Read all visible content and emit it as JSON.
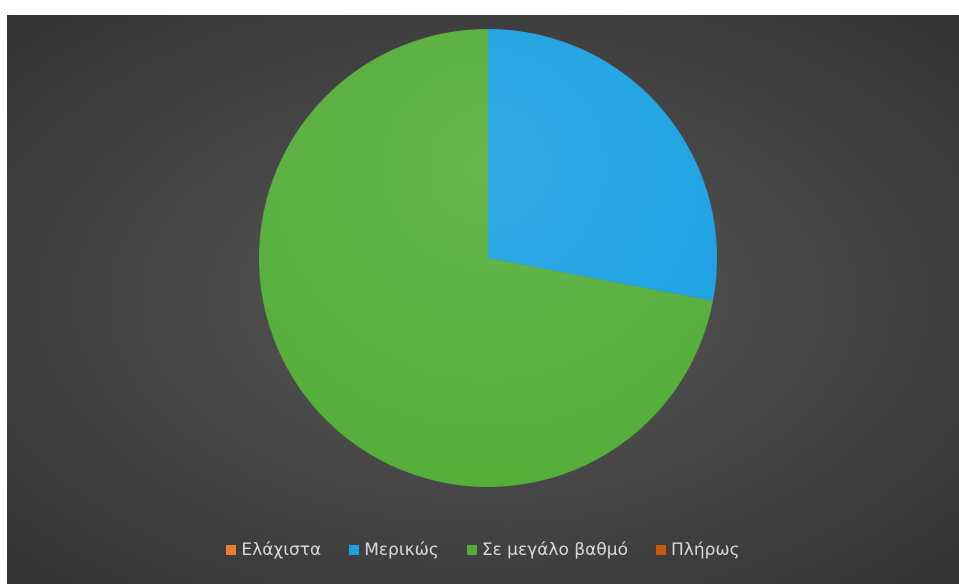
{
  "chart_data": {
    "type": "pie",
    "title": "",
    "categories": [
      "Ελάχιστα",
      "Μερικώς",
      "Σε μεγάλο βαθμό",
      "Πλήρως"
    ],
    "values": [
      0,
      28,
      72,
      0
    ],
    "colors": [
      "#ed7d31",
      "#1ba1e2",
      "#55ae3a",
      "#c55a11"
    ],
    "start_angle_deg": 0,
    "direction": "clockwise",
    "legend_position": "bottom"
  }
}
